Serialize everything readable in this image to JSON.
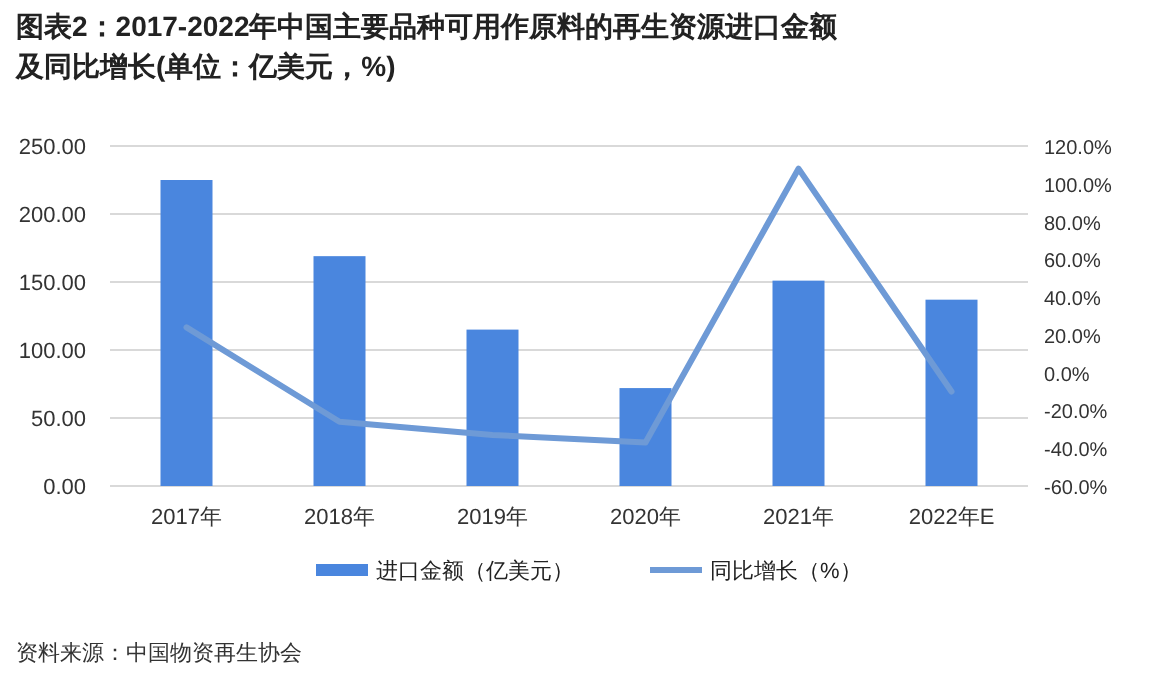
{
  "chart_data": {
    "type": "bar",
    "title": "图表2：2017-2022年中国主要品种可用作原料的再生资源进口金额及同比增长(单位：亿美元，%)",
    "categories": [
      "2017年",
      "2018年",
      "2019年",
      "2020年",
      "2021年",
      "2022年E"
    ],
    "series": [
      {
        "name": "进口金额（亿美元）",
        "color": "#4a86de",
        "values": [
          225,
          169,
          115,
          72,
          151,
          137
        ]
      },
      {
        "name": "同比增长（%）",
        "type": "line",
        "axis": "y2",
        "color": "#6e9ad6",
        "values": [
          24,
          -26,
          -33,
          -37,
          108,
          -10
        ]
      }
    ],
    "ylim": [
      0,
      250
    ],
    "yticks": [
      {
        "value": 0,
        "label": "0.00"
      },
      {
        "value": 50,
        "label": "50.00"
      },
      {
        "value": 100,
        "label": "100.00"
      },
      {
        "value": 150,
        "label": "150.00"
      },
      {
        "value": 200,
        "label": "200.00"
      },
      {
        "value": 250,
        "label": "250.00"
      }
    ],
    "y2lim": [
      -60,
      120
    ],
    "y2ticks": [
      {
        "value": -60,
        "label": "-60.0%"
      },
      {
        "value": -40,
        "label": "-40.0%"
      },
      {
        "value": -20,
        "label": "-20.0%"
      },
      {
        "value": 0,
        "label": "0.0%"
      },
      {
        "value": 20,
        "label": "20.0%"
      },
      {
        "value": 40,
        "label": "40.0%"
      },
      {
        "value": 60,
        "label": "60.0%"
      },
      {
        "value": 80,
        "label": "80.0%"
      },
      {
        "value": 100,
        "label": "100.0%"
      },
      {
        "value": 120,
        "label": "120.0%"
      }
    ],
    "grid": "y",
    "legend": "bottom",
    "annotations": [
      "资料来源：中国物资再生协会"
    ]
  }
}
